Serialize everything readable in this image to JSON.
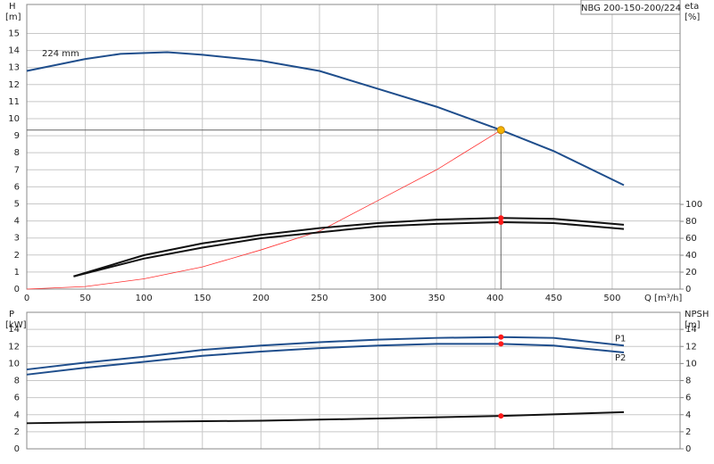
{
  "chart_data": [
    {
      "type": "line",
      "title": "NBG 200-150-200/224",
      "x_label": "Q [m³/h]",
      "y_label": "H",
      "y_unit": "[m]",
      "y2_label": "eta",
      "y2_unit": "[%]",
      "annotation": "224 mm",
      "grid": true,
      "xlim": [
        0,
        558
      ],
      "xticks": [
        0,
        50,
        100,
        150,
        200,
        250,
        300,
        350,
        400,
        450,
        500
      ],
      "ylim": [
        0,
        16.7
      ],
      "yticks": [
        0,
        1,
        2,
        3,
        4,
        5,
        6,
        7,
        8,
        9,
        10,
        11,
        12,
        13,
        14,
        15
      ],
      "y2lim": [
        0,
        336
      ],
      "y2ticks": [
        0,
        20,
        40,
        60,
        80,
        100
      ],
      "duty_point": {
        "q": 405,
        "h": 9.33,
        "color": "#f5b400"
      },
      "series": [
        {
          "color": "#1f4e8c",
          "x": [
            0,
            50,
            80,
            120,
            150,
            200,
            250,
            300,
            350,
            405,
            450,
            510
          ],
          "values": [
            12.8,
            13.5,
            13.8,
            13.9,
            13.75,
            13.4,
            12.8,
            11.75,
            10.7,
            9.33,
            8.1,
            6.1
          ]
        },
        {
          "color": "#ff3030",
          "x": [
            0,
            50,
            100,
            150,
            200,
            250,
            300,
            350,
            405
          ],
          "values": [
            0,
            0.15,
            0.6,
            1.3,
            2.3,
            3.4,
            5.2,
            7.0,
            9.33
          ]
        },
        {
          "color": "#111111",
          "axis": "y2",
          "x": [
            40,
            100,
            150,
            200,
            250,
            300,
            350,
            405,
            450,
            510
          ],
          "values": [
            15,
            40,
            54,
            64,
            72,
            78,
            82,
            84,
            83,
            76
          ]
        },
        {
          "color": "#111111",
          "axis": "y2",
          "x": [
            40,
            100,
            150,
            200,
            250,
            300,
            350,
            405,
            450,
            510
          ],
          "values": [
            15,
            36,
            49,
            60,
            67,
            74,
            77,
            79,
            78,
            71
          ]
        }
      ]
    },
    {
      "type": "line",
      "y_label": "P",
      "y_unit": "[kW]",
      "y2_label": "NPSH",
      "y2_unit": "[m]",
      "grid": true,
      "xlim": [
        0,
        558
      ],
      "xticks": [
        0,
        50,
        100,
        150,
        200,
        250,
        300,
        350,
        400,
        450,
        500
      ],
      "ylim": [
        0,
        16
      ],
      "yticks": [
        0,
        2,
        4,
        6,
        8,
        10,
        12,
        14
      ],
      "y2lim": [
        0,
        16
      ],
      "y2ticks": [
        0,
        2,
        4,
        6,
        8,
        10,
        12,
        14
      ],
      "duty_q": 405,
      "series": [
        {
          "name": "P1",
          "color": "#1f4e8c",
          "x": [
            0,
            50,
            100,
            150,
            200,
            250,
            300,
            350,
            405,
            450,
            470,
            510
          ],
          "values": [
            9.3,
            10.1,
            10.8,
            11.6,
            12.1,
            12.5,
            12.8,
            13.0,
            13.1,
            13.0,
            12.7,
            12.1
          ]
        },
        {
          "name": "P2",
          "color": "#1f4e8c",
          "x": [
            0,
            50,
            100,
            150,
            200,
            250,
            300,
            350,
            405,
            450,
            510
          ],
          "values": [
            8.7,
            9.5,
            10.2,
            10.9,
            11.4,
            11.8,
            12.1,
            12.3,
            12.3,
            12.1,
            11.3
          ]
        },
        {
          "color": "#111111",
          "axis": "y2",
          "x": [
            0,
            50,
            200,
            300,
            405,
            510
          ],
          "values": [
            3.0,
            3.1,
            3.3,
            3.55,
            3.85,
            4.3
          ]
        }
      ]
    }
  ]
}
